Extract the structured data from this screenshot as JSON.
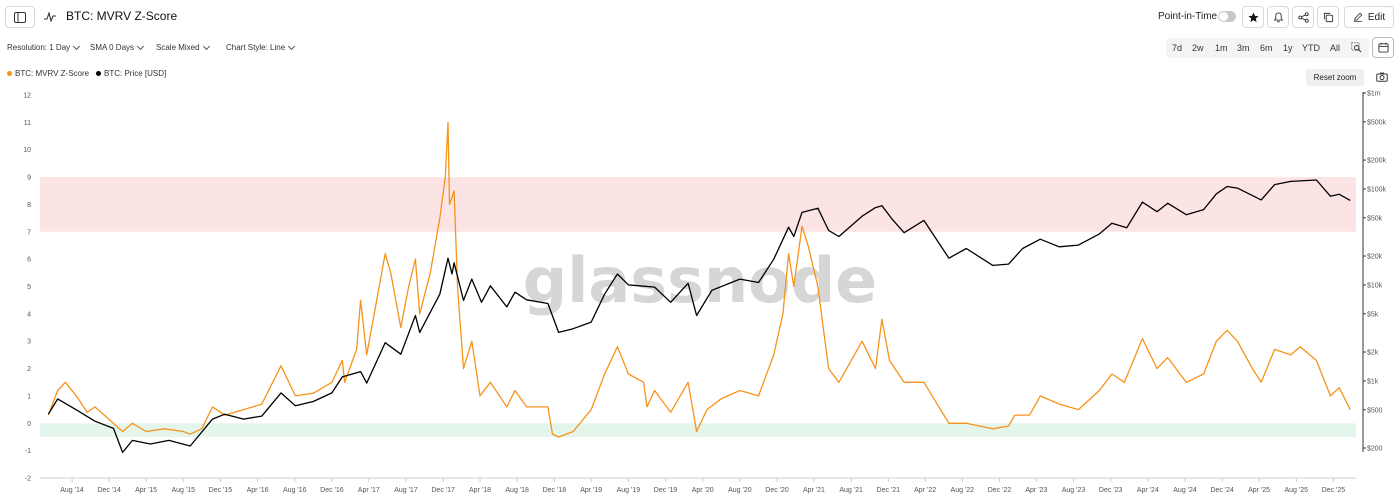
{
  "header": {
    "title": "BTC: MVRV Z-Score",
    "point_in_time_label": "Point-in-Time",
    "edit_label": "Edit"
  },
  "options": {
    "resolution": "Resolution: 1 Day",
    "sma": "SMA 0 Days",
    "scale": "Scale Mixed",
    "chart_style": "Chart Style: Line"
  },
  "ranges": [
    "7d",
    "2w",
    "1m",
    "3m",
    "6m",
    "1y",
    "YTD",
    "All"
  ],
  "reset_zoom_label": "Reset zoom",
  "watermark": "glassnode",
  "colors": {
    "zscore": "#f7931a",
    "price": "#000000",
    "top_band": "#fde4e4",
    "bottom_band": "#e4f5ec"
  },
  "chart_data": {
    "type": "line",
    "x_range": [
      "2014-05-01",
      "2026-01-31"
    ],
    "x_ticks": [
      "Aug '14",
      "Dec '14",
      "Apr '15",
      "Aug '15",
      "Dec '15",
      "Apr '16",
      "Aug '16",
      "Dec '16",
      "Apr '17",
      "Aug '17",
      "Dec '17",
      "Apr '18",
      "Aug '18",
      "Dec '18",
      "Apr '19",
      "Aug '19",
      "Dec '19",
      "Apr '20",
      "Aug '20",
      "Dec '20",
      "Apr '21",
      "Aug '21",
      "Dec '21",
      "Apr '22",
      "Aug '22",
      "Dec '22",
      "Apr '23",
      "Aug '23",
      "Dec '23",
      "Apr '24",
      "Aug '24",
      "Dec '24",
      "Apr '25",
      "Aug '25",
      "Dec '25"
    ],
    "y_left": {
      "range": [
        -2,
        12
      ],
      "ticks": [
        "-2",
        "-1",
        "0",
        "1",
        "2",
        "3",
        "4",
        "5",
        "6",
        "7",
        "8",
        "9",
        "10",
        "11",
        "12"
      ]
    },
    "y_right": {
      "scale": "log",
      "range": [
        200,
        1000000
      ],
      "ticks": [
        "$200",
        "$500",
        "$1k",
        "$2k",
        "$5k",
        "$10k",
        "$20k",
        "$50k",
        "$100k",
        "$200k",
        "$500k",
        "$1m"
      ]
    },
    "bands": [
      {
        "y_from": 7,
        "y_to": 9,
        "color": "#fde4e4"
      },
      {
        "y_from": -0.5,
        "y_to": 0,
        "color": "#e4f5ec"
      }
    ],
    "legend_position": "top-left",
    "series": [
      {
        "name": "BTC: MVRV Z-Score",
        "axis": "left",
        "color": "#f7931a",
        "points": [
          [
            "2014-05-15",
            0.3
          ],
          [
            "2014-06-15",
            1.2
          ],
          [
            "2014-07-10",
            1.5
          ],
          [
            "2014-08-15",
            1.0
          ],
          [
            "2014-09-20",
            0.4
          ],
          [
            "2014-10-15",
            0.6
          ],
          [
            "2014-11-15",
            0.3
          ],
          [
            "2014-12-15",
            0.0
          ],
          [
            "2015-01-14",
            -0.3
          ],
          [
            "2015-02-15",
            0.0
          ],
          [
            "2015-04-01",
            -0.3
          ],
          [
            "2015-06-01",
            -0.2
          ],
          [
            "2015-08-01",
            -0.3
          ],
          [
            "2015-08-24",
            -0.4
          ],
          [
            "2015-10-01",
            -0.2
          ],
          [
            "2015-11-05",
            0.6
          ],
          [
            "2015-12-15",
            0.3
          ],
          [
            "2016-02-15",
            0.5
          ],
          [
            "2016-04-15",
            0.7
          ],
          [
            "2016-06-17",
            2.1
          ],
          [
            "2016-08-03",
            1.0
          ],
          [
            "2016-10-01",
            1.1
          ],
          [
            "2016-12-01",
            1.5
          ],
          [
            "2017-01-04",
            2.3
          ],
          [
            "2017-01-12",
            1.5
          ],
          [
            "2017-02-20",
            2.7
          ],
          [
            "2017-03-05",
            4.5
          ],
          [
            "2017-03-25",
            2.5
          ],
          [
            "2017-05-25",
            6.2
          ],
          [
            "2017-06-12",
            5.5
          ],
          [
            "2017-07-15",
            3.5
          ],
          [
            "2017-08-10",
            5.0
          ],
          [
            "2017-09-01",
            6.0
          ],
          [
            "2017-09-15",
            4.0
          ],
          [
            "2017-10-20",
            5.5
          ],
          [
            "2017-11-20",
            7.5
          ],
          [
            "2017-12-08",
            9.0
          ],
          [
            "2017-12-17",
            11.0
          ],
          [
            "2017-12-22",
            8.0
          ],
          [
            "2018-01-06",
            8.5
          ],
          [
            "2018-01-17",
            5.0
          ],
          [
            "2018-02-06",
            2.0
          ],
          [
            "2018-03-05",
            3.0
          ],
          [
            "2018-04-01",
            1.0
          ],
          [
            "2018-05-05",
            1.5
          ],
          [
            "2018-06-28",
            0.6
          ],
          [
            "2018-07-25",
            1.2
          ],
          [
            "2018-09-01",
            0.6
          ],
          [
            "2018-11-10",
            0.6
          ],
          [
            "2018-11-25",
            -0.4
          ],
          [
            "2018-12-15",
            -0.5
          ],
          [
            "2019-02-01",
            -0.3
          ],
          [
            "2019-04-01",
            0.5
          ],
          [
            "2019-05-15",
            1.8
          ],
          [
            "2019-06-26",
            2.8
          ],
          [
            "2019-08-01",
            1.8
          ],
          [
            "2019-09-20",
            1.5
          ],
          [
            "2019-10-01",
            0.6
          ],
          [
            "2019-10-26",
            1.2
          ],
          [
            "2019-12-18",
            0.4
          ],
          [
            "2020-02-13",
            1.5
          ],
          [
            "2020-03-12",
            -0.3
          ],
          [
            "2020-04-15",
            0.5
          ],
          [
            "2020-06-01",
            0.9
          ],
          [
            "2020-08-01",
            1.2
          ],
          [
            "2020-10-01",
            1.0
          ],
          [
            "2020-11-20",
            2.5
          ],
          [
            "2020-12-20",
            4.0
          ],
          [
            "2021-01-08",
            6.2
          ],
          [
            "2021-01-25",
            5.0
          ],
          [
            "2021-02-21",
            7.2
          ],
          [
            "2021-03-13",
            6.5
          ],
          [
            "2021-04-14",
            5.0
          ],
          [
            "2021-05-19",
            2.0
          ],
          [
            "2021-06-22",
            1.5
          ],
          [
            "2021-09-06",
            3.0
          ],
          [
            "2021-10-20",
            2.0
          ],
          [
            "2021-11-10",
            3.8
          ],
          [
            "2021-12-05",
            2.3
          ],
          [
            "2022-01-22",
            1.5
          ],
          [
            "2022-03-28",
            1.5
          ],
          [
            "2022-06-18",
            0.0
          ],
          [
            "2022-08-14",
            0.0
          ],
          [
            "2022-11-09",
            -0.2
          ],
          [
            "2022-12-31",
            -0.1
          ],
          [
            "2023-01-20",
            0.3
          ],
          [
            "2023-03-10",
            0.3
          ],
          [
            "2023-04-14",
            1.0
          ],
          [
            "2023-06-15",
            0.7
          ],
          [
            "2023-08-17",
            0.5
          ],
          [
            "2023-10-25",
            1.2
          ],
          [
            "2023-12-05",
            1.8
          ],
          [
            "2024-01-15",
            1.5
          ],
          [
            "2024-03-14",
            3.1
          ],
          [
            "2024-05-01",
            2.0
          ],
          [
            "2024-06-05",
            2.4
          ],
          [
            "2024-08-05",
            1.5
          ],
          [
            "2024-10-01",
            1.8
          ],
          [
            "2024-11-12",
            3.0
          ],
          [
            "2024-12-17",
            3.4
          ],
          [
            "2025-01-20",
            3.0
          ],
          [
            "2025-03-10",
            2.0
          ],
          [
            "2025-04-08",
            1.5
          ],
          [
            "2025-05-22",
            2.7
          ],
          [
            "2025-07-14",
            2.5
          ],
          [
            "2025-08-14",
            2.8
          ],
          [
            "2025-10-06",
            2.3
          ],
          [
            "2025-11-21",
            1.0
          ],
          [
            "2025-12-20",
            1.3
          ],
          [
            "2026-01-25",
            0.5
          ]
        ]
      },
      {
        "name": "BTC: Price [USD]",
        "axis": "right",
        "color": "#000000",
        "points": [
          [
            "2014-05-15",
            450
          ],
          [
            "2014-06-15",
            650
          ],
          [
            "2014-08-15",
            500
          ],
          [
            "2014-10-15",
            380
          ],
          [
            "2014-12-15",
            320
          ],
          [
            "2015-01-14",
            180
          ],
          [
            "2015-02-15",
            240
          ],
          [
            "2015-04-15",
            220
          ],
          [
            "2015-06-15",
            240
          ],
          [
            "2015-08-24",
            210
          ],
          [
            "2015-11-05",
            400
          ],
          [
            "2015-12-15",
            450
          ],
          [
            "2016-02-15",
            400
          ],
          [
            "2016-04-15",
            430
          ],
          [
            "2016-06-17",
            750
          ],
          [
            "2016-08-03",
            550
          ],
          [
            "2016-10-01",
            610
          ],
          [
            "2016-12-01",
            750
          ],
          [
            "2017-01-04",
            1100
          ],
          [
            "2017-03-05",
            1250
          ],
          [
            "2017-03-25",
            950
          ],
          [
            "2017-05-25",
            2500
          ],
          [
            "2017-07-15",
            1900
          ],
          [
            "2017-09-01",
            4800
          ],
          [
            "2017-09-15",
            3200
          ],
          [
            "2017-11-20",
            8000
          ],
          [
            "2017-12-17",
            19000
          ],
          [
            "2017-12-30",
            13000
          ],
          [
            "2018-01-06",
            17000
          ],
          [
            "2018-02-06",
            6900
          ],
          [
            "2018-03-05",
            11500
          ],
          [
            "2018-04-06",
            6600
          ],
          [
            "2018-05-05",
            9800
          ],
          [
            "2018-06-28",
            5900
          ],
          [
            "2018-07-25",
            8400
          ],
          [
            "2018-09-01",
            7000
          ],
          [
            "2018-11-10",
            6400
          ],
          [
            "2018-12-15",
            3200
          ],
          [
            "2019-02-01",
            3500
          ],
          [
            "2019-04-01",
            4100
          ],
          [
            "2019-05-15",
            8000
          ],
          [
            "2019-06-26",
            13000
          ],
          [
            "2019-08-01",
            10000
          ],
          [
            "2019-10-26",
            9500
          ],
          [
            "2019-12-18",
            6600
          ],
          [
            "2020-02-13",
            10400
          ],
          [
            "2020-03-12",
            4800
          ],
          [
            "2020-05-01",
            8800
          ],
          [
            "2020-08-01",
            11500
          ],
          [
            "2020-10-01",
            10600
          ],
          [
            "2020-11-20",
            18500
          ],
          [
            "2021-01-08",
            40000
          ],
          [
            "2021-01-25",
            32000
          ],
          [
            "2021-02-21",
            57000
          ],
          [
            "2021-04-14",
            63000
          ],
          [
            "2021-05-19",
            37000
          ],
          [
            "2021-06-22",
            32000
          ],
          [
            "2021-09-06",
            52000
          ],
          [
            "2021-10-20",
            64000
          ],
          [
            "2021-11-10",
            67000
          ],
          [
            "2021-12-15",
            48000
          ],
          [
            "2022-01-22",
            35000
          ],
          [
            "2022-03-28",
            47000
          ],
          [
            "2022-06-18",
            19000
          ],
          [
            "2022-08-14",
            24000
          ],
          [
            "2022-11-09",
            16000
          ],
          [
            "2022-12-31",
            16500
          ],
          [
            "2023-02-15",
            24000
          ],
          [
            "2023-04-14",
            30000
          ],
          [
            "2023-06-15",
            25000
          ],
          [
            "2023-08-17",
            26000
          ],
          [
            "2023-10-25",
            34000
          ],
          [
            "2023-12-05",
            44000
          ],
          [
            "2024-01-23",
            39500
          ],
          [
            "2024-03-14",
            73000
          ],
          [
            "2024-05-01",
            58000
          ],
          [
            "2024-06-05",
            71000
          ],
          [
            "2024-08-05",
            54000
          ],
          [
            "2024-10-01",
            61000
          ],
          [
            "2024-11-12",
            89000
          ],
          [
            "2024-12-17",
            106000
          ],
          [
            "2025-01-20",
            102000
          ],
          [
            "2025-04-08",
            77000
          ],
          [
            "2025-05-22",
            111000
          ],
          [
            "2025-07-14",
            120000
          ],
          [
            "2025-10-06",
            124000
          ],
          [
            "2025-11-21",
            84000
          ],
          [
            "2025-12-20",
            88000
          ],
          [
            "2026-01-25",
            76000
          ]
        ]
      }
    ]
  }
}
